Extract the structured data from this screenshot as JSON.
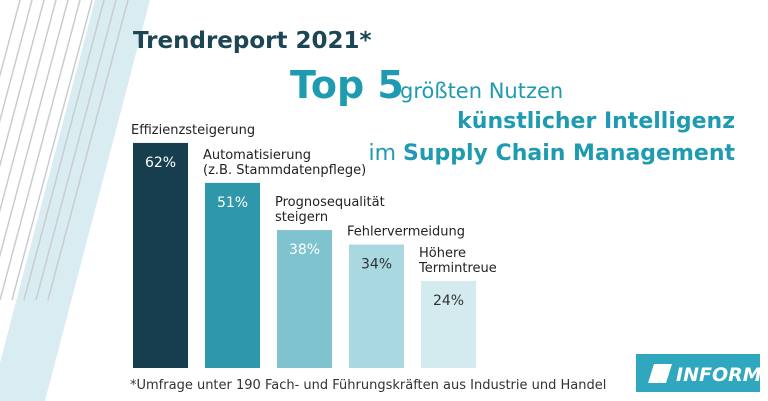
{
  "chart_data": {
    "type": "bar",
    "title": "Trendreport 2021*",
    "headline": "Top 5",
    "subtitle_parts": [
      "größten Nutzen",
      "künstlicher Intelligenz",
      "im",
      "Supply Chain Management"
    ],
    "categories": [
      [
        "Effizienzsteigerung"
      ],
      [
        "Automatisierung",
        "(z.B. Stammdatenpflege)"
      ],
      [
        "Prognosequalität",
        "steigern"
      ],
      [
        "Fehlervermeidung"
      ],
      [
        "Höhere",
        "Termintreue"
      ]
    ],
    "values": [
      62,
      51,
      38,
      34,
      24
    ],
    "value_labels": [
      "62%",
      "51%",
      "38%",
      "34%",
      "24%"
    ],
    "colors": [
      "#163e4f",
      "#2e97aa",
      "#7fc3cf",
      "#a9d8e1",
      "#d3ebef"
    ],
    "footnote": "*Umfrage unter 190 Fach- und Führungskräften aus Industrie und Handel",
    "logo": "INFORM"
  }
}
